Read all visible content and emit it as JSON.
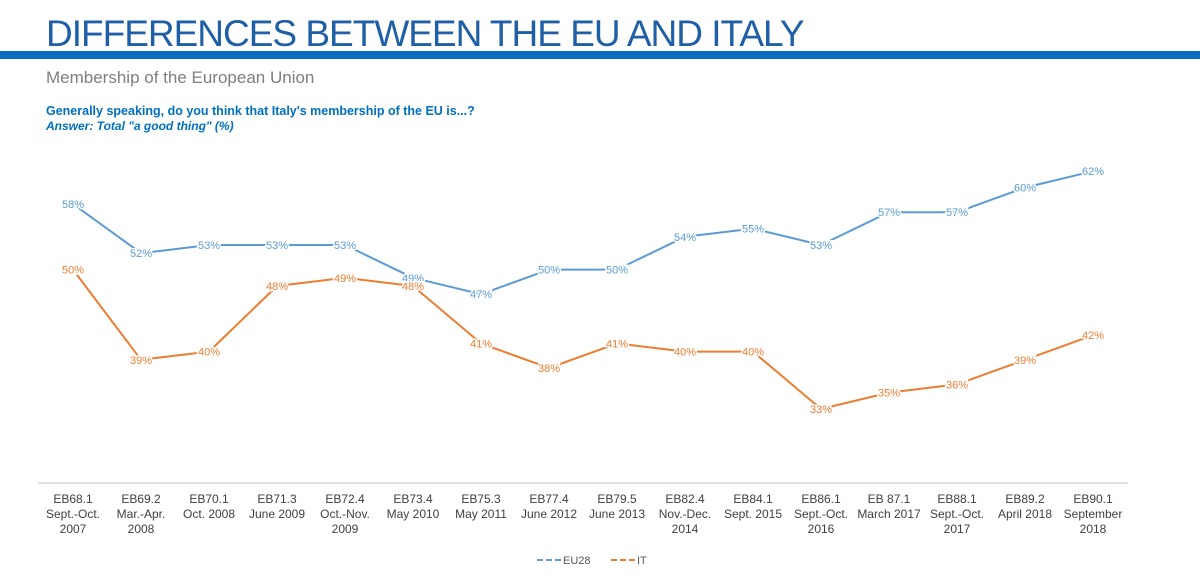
{
  "header": {
    "title": "DIFFERENCES BETWEEN THE EU AND ITALY",
    "subtitle": "Membership of the European Union",
    "question": "Generally speaking, do you think that Italy's membership of the EU is...?",
    "answer": "Answer: Total \"a good thing\" (%)"
  },
  "colors": {
    "title": "#1f5fa6",
    "rule": "#0a6cbf",
    "question": "#0070c0",
    "axis": "#d9d9d9",
    "eu28": "#5b9bd5",
    "it": "#ed7d31"
  },
  "chart_data": {
    "type": "line",
    "categories": [
      [
        "EB68.1",
        "Sept.-Oct.",
        "2007"
      ],
      [
        "EB69.2",
        "Mar.-Apr.",
        "2008"
      ],
      [
        "EB70.1",
        "Oct. 2008"
      ],
      [
        "EB71.3",
        "June 2009"
      ],
      [
        "EB72.4",
        "Oct.-Nov.",
        "2009"
      ],
      [
        "EB73.4",
        "May 2010"
      ],
      [
        "EB75.3",
        "May 2011"
      ],
      [
        "EB77.4",
        "June 2012"
      ],
      [
        "EB79.5",
        "June 2013"
      ],
      [
        "EB82.4",
        "Nov.-Dec.",
        "2014"
      ],
      [
        "EB84.1",
        "Sept. 2015"
      ],
      [
        "EB86.1",
        "Sept.-Oct.",
        "2016"
      ],
      [
        "EB 87.1",
        "March 2017"
      ],
      [
        "EB88.1",
        "Sept.-Oct.",
        "2017"
      ],
      [
        "EB89.2",
        "April 2018"
      ],
      [
        "EB90.1",
        "September",
        "2018"
      ]
    ],
    "series": [
      {
        "name": "EU28",
        "values": [
          58,
          52,
          53,
          53,
          53,
          49,
          47,
          50,
          50,
          54,
          55,
          53,
          57,
          57,
          60,
          62
        ],
        "labels": [
          "58%",
          "52%",
          "53%",
          "53%",
          "53%",
          "49%",
          "47%",
          "50%",
          "50%",
          "54%",
          "55%",
          "53%",
          "57%",
          "57%",
          "60%",
          "62%"
        ]
      },
      {
        "name": "IT",
        "values": [
          50,
          39,
          40,
          48,
          49,
          48,
          41,
          38,
          41,
          40,
          40,
          33,
          35,
          36,
          39,
          42
        ],
        "labels": [
          "50%",
          "39%",
          "40%",
          "48%",
          "49%",
          "48%",
          "41%",
          "38%",
          "41%",
          "40%",
          "40%",
          "33%",
          "35%",
          "36%",
          "39%",
          "42%"
        ]
      }
    ],
    "legend": {
      "position": "bottom-center",
      "items": [
        "EU28",
        "IT"
      ]
    },
    "grid": false
  }
}
